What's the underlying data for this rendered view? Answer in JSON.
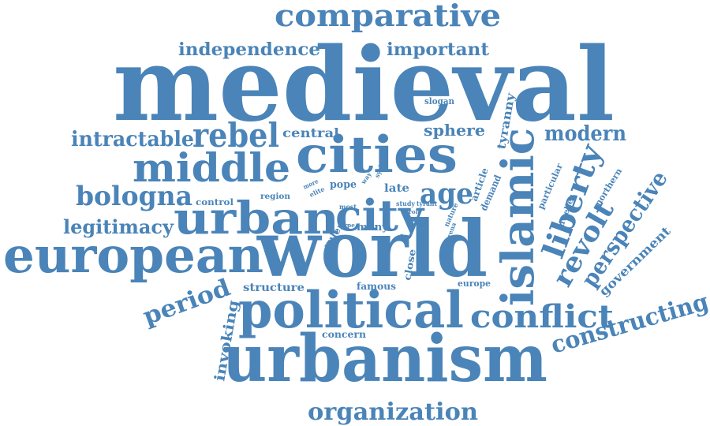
{
  "color": "#4a84b8",
  "words": [
    {
      "id": "medieval",
      "text": "medieval"
    },
    {
      "id": "world",
      "text": "world"
    },
    {
      "id": "urbanism",
      "text": "urbanism"
    },
    {
      "id": "european",
      "text": "european"
    },
    {
      "id": "political",
      "text": "political"
    },
    {
      "id": "cities",
      "text": "cities"
    },
    {
      "id": "islamic",
      "text": "islamic"
    },
    {
      "id": "urban",
      "text": "urban"
    },
    {
      "id": "city",
      "text": "city"
    },
    {
      "id": "middle",
      "text": "middle"
    },
    {
      "id": "comparative",
      "text": "comparative"
    },
    {
      "id": "constructing",
      "text": "constructing"
    },
    {
      "id": "organization",
      "text": "organization"
    },
    {
      "id": "liberty",
      "text": "liberty"
    },
    {
      "id": "revolt",
      "text": "revolt"
    },
    {
      "id": "rebel",
      "text": "rebel"
    },
    {
      "id": "conflict",
      "text": "conflict"
    },
    {
      "id": "bologna",
      "text": "bologna"
    },
    {
      "id": "period",
      "text": "period"
    },
    {
      "id": "age",
      "text": "age"
    },
    {
      "id": "perspective",
      "text": "perspective"
    },
    {
      "id": "intractable",
      "text": "intractable"
    },
    {
      "id": "legitimacy",
      "text": "legitimacy"
    },
    {
      "id": "independence",
      "text": "independence"
    },
    {
      "id": "important",
      "text": "important"
    },
    {
      "id": "modern",
      "text": "modern"
    },
    {
      "id": "invoking",
      "text": "invoking"
    },
    {
      "id": "government",
      "text": "government"
    },
    {
      "id": "sphere",
      "text": "sphere"
    },
    {
      "id": "central",
      "text": "central"
    },
    {
      "id": "tyranny",
      "text": "tyranny"
    },
    {
      "id": "structure",
      "text": "structure"
    },
    {
      "id": "concern",
      "text": "concern"
    },
    {
      "id": "famous",
      "text": "famous"
    },
    {
      "id": "close",
      "text": "close"
    },
    {
      "id": "europe",
      "text": "europe"
    },
    {
      "id": "many",
      "text": "many"
    },
    {
      "id": "ruler",
      "text": "ruler"
    },
    {
      "id": "late",
      "text": "late"
    },
    {
      "id": "pope",
      "text": "pope"
    },
    {
      "id": "control",
      "text": "control"
    },
    {
      "id": "region",
      "text": "region"
    },
    {
      "id": "slogan",
      "text": "slogan"
    },
    {
      "id": "particular",
      "text": "particular"
    },
    {
      "id": "dweller",
      "text": "dweller"
    },
    {
      "id": "northern",
      "text": "northern"
    },
    {
      "id": "demand",
      "text": "demand"
    },
    {
      "id": "article",
      "text": "article"
    },
    {
      "id": "nature",
      "text": "nature"
    },
    {
      "id": "arena",
      "text": "arena"
    },
    {
      "id": "study",
      "text": "study"
    },
    {
      "id": "tyrant",
      "text": "tyrant"
    },
    {
      "id": "role",
      "text": "role"
    },
    {
      "id": "most",
      "text": "most"
    },
    {
      "id": "type",
      "text": "type"
    },
    {
      "id": "more",
      "text": "more"
    },
    {
      "id": "elite",
      "text": "elite"
    },
    {
      "id": "way",
      "text": "way"
    },
    {
      "id": "syria",
      "text": "syria"
    }
  ]
}
